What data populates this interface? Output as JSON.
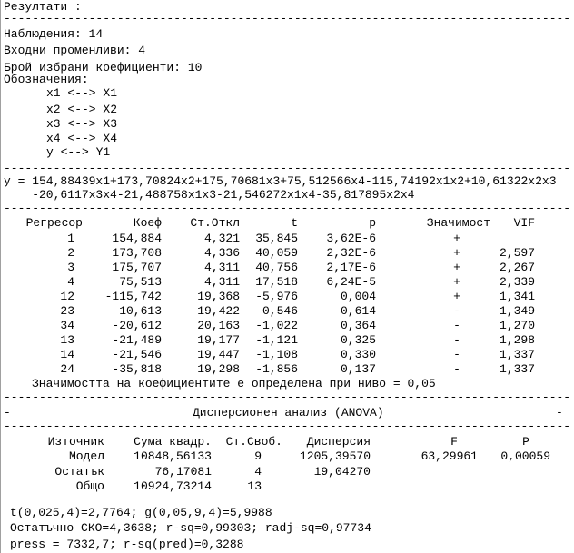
{
  "title": "Резултати :",
  "observations": "Наблюдения: 14",
  "input_vars": "Входни променливи: 4",
  "selected_coefs": "Брой избрани коефициенти: 10",
  "notation_label": "Обозначения:",
  "notations": [
    "x1 <--> X1",
    "x2 <--> X2",
    "x3 <--> X3",
    "x4 <--> X4",
    "y <--> Y1"
  ],
  "equation": [
    "y = 154,88439x1+173,70824x2+175,70681x3+75,512566x4-115,74192x1x2+10,61322x2x3",
    "    -20,6117x3x4-21,488758x1x3-21,546272x1x4-35,817895x2x4"
  ],
  "coef_table": {
    "headers": [
      "Регресор",
      "Коеф",
      "Ст.Откл",
      "t",
      "p",
      "Значимост",
      "VIF"
    ],
    "rows": [
      [
        "1",
        "154,884",
        "4,321",
        "35,845",
        "3,62E-6",
        "+",
        ""
      ],
      [
        "2",
        "173,708",
        "4,336",
        "40,059",
        "2,32E-6",
        "+",
        "2,597"
      ],
      [
        "3",
        "175,707",
        "4,311",
        "40,756",
        "2,17E-6",
        "+",
        "2,267"
      ],
      [
        "4",
        "75,513",
        "4,311",
        "17,518",
        "6,24E-5",
        "+",
        "2,339"
      ],
      [
        "12",
        "-115,742",
        "19,368",
        "-5,976",
        "0,004",
        "+",
        "1,341"
      ],
      [
        "23",
        "10,613",
        "19,422",
        "0,546",
        "0,614",
        "-",
        "1,349"
      ],
      [
        "34",
        "-20,612",
        "20,163",
        "-1,022",
        "0,364",
        "-",
        "1,270"
      ],
      [
        "13",
        "-21,489",
        "19,177",
        "-1,121",
        "0,325",
        "-",
        "1,298"
      ],
      [
        "14",
        "-21,546",
        "19,447",
        "-1,108",
        "0,330",
        "-",
        "1,337"
      ],
      [
        "24",
        "-35,818",
        "19,298",
        "-1,856",
        "0,137",
        "-",
        "1,337"
      ]
    ],
    "note": "Значимостта на коефициентите е определена при ниво = 0,05"
  },
  "anova": {
    "title": "Дисперсионен анализ (ANOVA)",
    "headers": [
      "Източник",
      "Сума квадр.",
      "Ст.Своб.",
      "Дисперсия",
      "F",
      "P"
    ],
    "rows": [
      [
        "Модел",
        "10848,56133",
        "9",
        "1205,39570",
        "63,29961",
        "0,00059"
      ],
      [
        "Остатък",
        "76,17081",
        "4",
        "19,04270",
        "",
        ""
      ],
      [
        "Общо",
        "10924,73214",
        "13",
        "",
        "",
        ""
      ]
    ]
  },
  "stats": [
    "t(0,025,4)=2,7764; g(0,05,9,4)=5,9988",
    "Остатъчно СКО=4,3638; r-sq=0,99303; radj-sq=0,97734",
    "press = 7332,7; r-sq(pred)=0,3288"
  ]
}
